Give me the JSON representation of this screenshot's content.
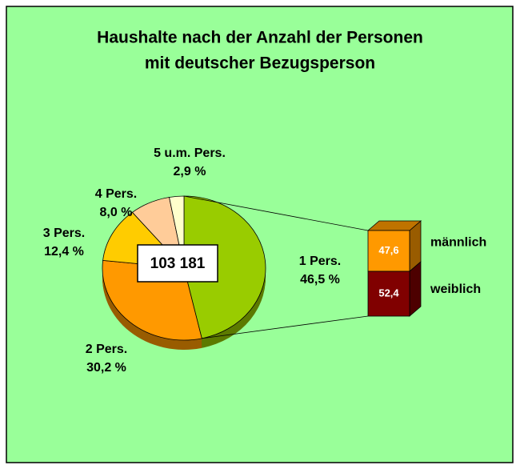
{
  "chart_data": {
    "type": "pie_of_bar",
    "title": [
      "Haushalte nach der Anzahl der Personen",
      "mit deutscher Bezugsperson"
    ],
    "center_label": "103 181",
    "pie": {
      "categories": [
        "1 Pers.",
        "2 Pers.",
        "3 Pers.",
        "4 Pers.",
        "5 u.m. Pers."
      ],
      "values": [
        46.5,
        30.2,
        12.4,
        8.0,
        2.9
      ],
      "value_labels": [
        "46,5 %",
        "30,2 %",
        "12,4 %",
        "8,0 %",
        "2,9 %"
      ],
      "colors": [
        "#99cc00",
        "#ff9900",
        "#ffcc00",
        "#ffcc99",
        "#ffffcc"
      ]
    },
    "bar": {
      "categories": [
        "männlich",
        "weiblich"
      ],
      "values": [
        47.6,
        52.4
      ],
      "value_labels": [
        "47,6",
        "52,4"
      ],
      "colors": [
        "#ff9900",
        "#800000"
      ]
    }
  }
}
